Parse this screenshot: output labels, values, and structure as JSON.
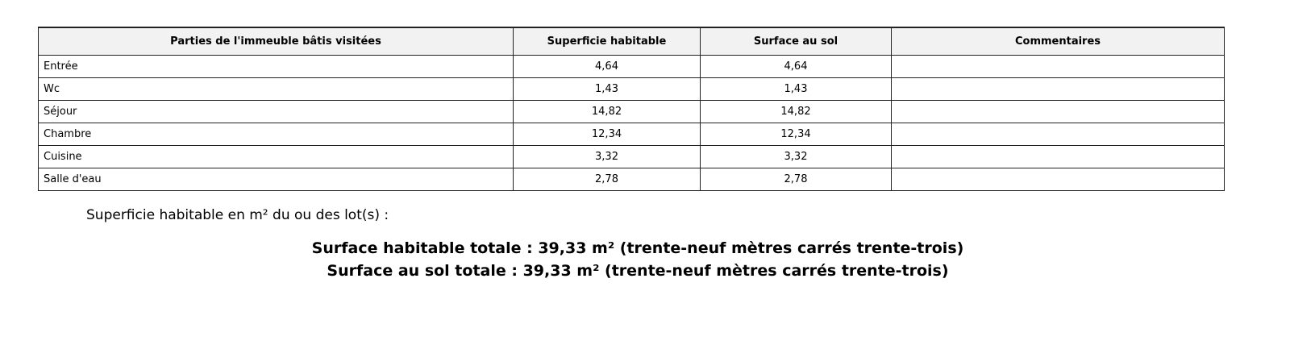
{
  "table": {
    "headers": [
      "Parties de l'immeuble bâtis visitées",
      "Superficie habitable",
      "Surface au sol",
      "Commentaires"
    ],
    "rows": [
      [
        "Entrée",
        "4,64",
        "4,64",
        ""
      ],
      [
        "Wc",
        "1,43",
        "1,43",
        ""
      ],
      [
        "Séjour",
        "14,82",
        "14,82",
        ""
      ],
      [
        "Chambre",
        "12,34",
        "12,34",
        ""
      ],
      [
        "Cuisine",
        "3,32",
        "3,32",
        ""
      ],
      [
        "Salle d'eau",
        "2,78",
        "2,78",
        ""
      ]
    ]
  },
  "summary": {
    "subtitle": "Superficie habitable en m² du ou des lot(s) :",
    "total_habitable": "Surface habitable totale : 39,33 m² (trente-neuf mètres carrés trente-trois)",
    "total_sol": "Surface au sol totale : 39,33 m² (trente-neuf mètres carrés trente-trois)"
  }
}
